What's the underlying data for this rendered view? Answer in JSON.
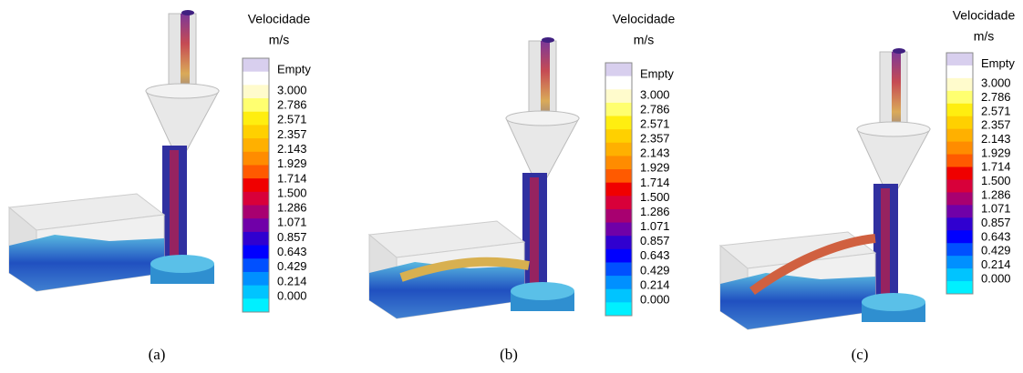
{
  "panels": [
    {
      "label": "(a)",
      "legend": {
        "title": "Velocidade",
        "unit": "m/s",
        "entries": [
          "Empty",
          "3.000",
          "2.786",
          "2.571",
          "2.357",
          "2.143",
          "1.929",
          "1.714",
          "1.500",
          "1.286",
          "1.071",
          "0.857",
          "0.643",
          "0.429",
          "0.214",
          "0.000"
        ]
      }
    },
    {
      "label": "(b)",
      "legend": {
        "title": "Velocidade",
        "unit": "m/s",
        "entries": [
          "Empty",
          "3.000",
          "2.786",
          "2.571",
          "2.357",
          "2.143",
          "1.929",
          "1.714",
          "1.500",
          "1.286",
          "1.071",
          "0.857",
          "0.643",
          "0.429",
          "0.214",
          "0.000"
        ]
      }
    },
    {
      "label": "(c)",
      "legend": {
        "title": "Velocidade",
        "unit": "m/s",
        "entries": [
          "Empty",
          "3.000",
          "2.786",
          "2.571",
          "2.357",
          "2.143",
          "1.929",
          "1.714",
          "1.500",
          "1.286",
          "1.071",
          "0.857",
          "0.643",
          "0.429",
          "0.214",
          "0.000"
        ]
      }
    }
  ]
}
